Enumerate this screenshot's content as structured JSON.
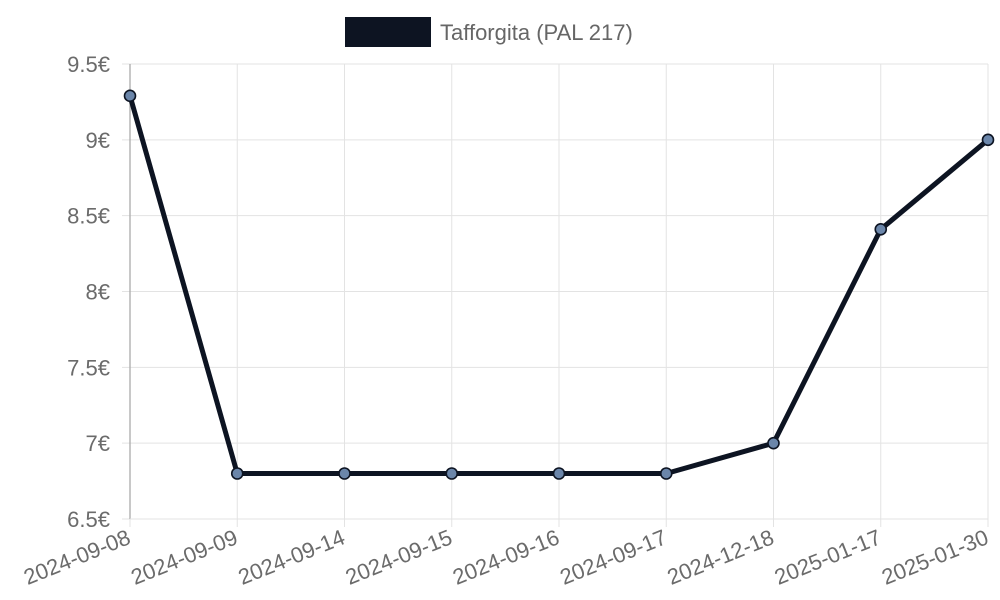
{
  "colors": {
    "series": "#0d1422",
    "point_fill": "#6b86aa",
    "point_stroke": "#0d1422"
  },
  "chart_data": {
    "type": "line",
    "title": "",
    "xlabel": "",
    "ylabel": "",
    "legend": {
      "placement": "top-center"
    },
    "grid": true,
    "y_unit_suffix": "€",
    "categories": [
      "2024-09-08",
      "2024-09-09",
      "2024-09-14",
      "2024-09-15",
      "2024-09-16",
      "2024-09-17",
      "2024-12-18",
      "2025-01-17",
      "2025-01-30"
    ],
    "series": [
      {
        "name": "Tafforgita (PAL 217)",
        "values": [
          9.29,
          6.8,
          6.8,
          6.8,
          6.8,
          6.8,
          7.0,
          8.41,
          9.0
        ]
      }
    ],
    "ylim": [
      6.5,
      9.5
    ],
    "y_ticks": [
      {
        "value": 6.5,
        "label": "6.5€"
      },
      {
        "value": 7.0,
        "label": "7€"
      },
      {
        "value": 7.5,
        "label": "7.5€"
      },
      {
        "value": 8.0,
        "label": "8€"
      },
      {
        "value": 8.5,
        "label": "8.5€"
      },
      {
        "value": 9.0,
        "label": "9€"
      },
      {
        "value": 9.5,
        "label": "9.5€"
      }
    ]
  }
}
